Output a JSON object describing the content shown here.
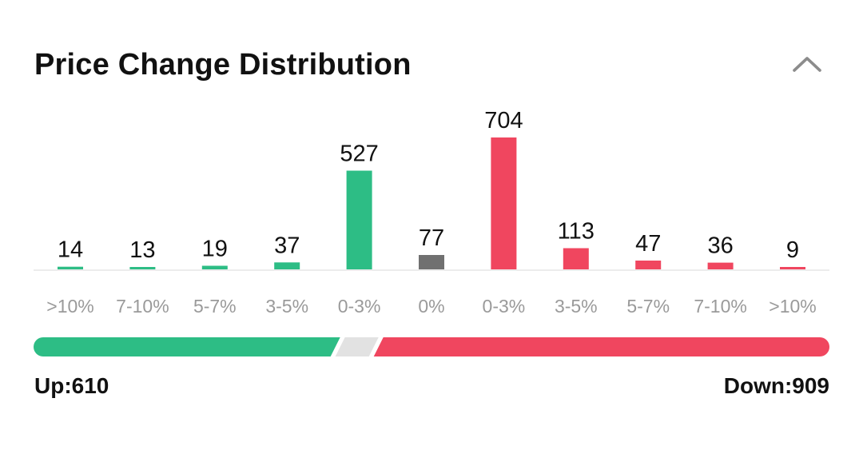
{
  "header": {
    "title": "Price Change Distribution",
    "collapse_icon": "chevron-up-icon"
  },
  "colors": {
    "up": "#2dbd85",
    "flat": "#707070",
    "down": "#f0465f",
    "neutral_bar": "#e2e2e2",
    "axis": "#ececec"
  },
  "chart_data": {
    "type": "bar",
    "title": "Price Change Distribution",
    "categories": [
      ">10%",
      "7-10%",
      "5-7%",
      "3-5%",
      "0-3%",
      "0%",
      "0-3%",
      "3-5%",
      "5-7%",
      "7-10%",
      ">10%"
    ],
    "values": [
      14,
      13,
      19,
      37,
      527,
      77,
      704,
      113,
      47,
      36,
      9
    ],
    "value_labels": [
      "14",
      "13",
      "19",
      "37",
      "527",
      "77",
      "704",
      "113",
      "47",
      "36",
      "9"
    ],
    "groups": [
      "up",
      "up",
      "up",
      "up",
      "up",
      "flat",
      "down",
      "down",
      "down",
      "down",
      "down"
    ],
    "xlabel": "",
    "ylabel": "",
    "ylim": [
      0,
      704
    ],
    "grid": false,
    "legend": "none"
  },
  "summary": {
    "up_label": "Up:610",
    "down_label": "Down:909",
    "up_count": 610,
    "flat_count": 77,
    "down_count": 909
  }
}
